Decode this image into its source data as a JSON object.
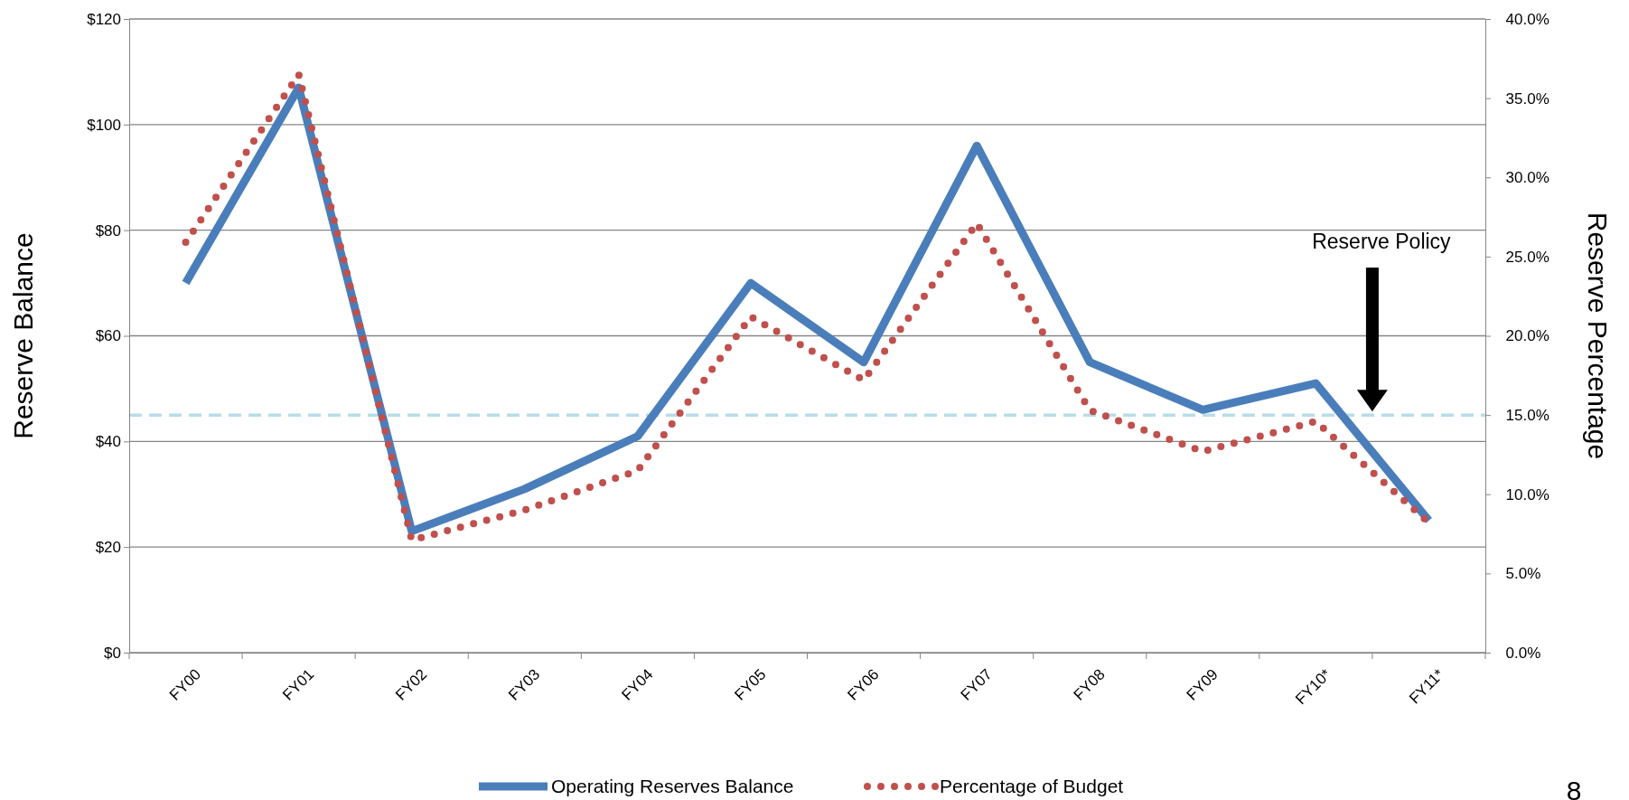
{
  "chart_data": {
    "type": "line",
    "ylabel": "Reserve Balance",
    "y2label": "Reserve Percentage",
    "categories": [
      "FY00",
      "FY01",
      "FY02",
      "FY03",
      "FY04",
      "FY05",
      "FY06",
      "FY07",
      "FY08",
      "FY09",
      "FY10*",
      "FY11*"
    ],
    "series": [
      {
        "name": "Operating Reserves Balance",
        "color": "#4a7ebb",
        "line_style": "solid",
        "values": [
          70,
          107,
          23,
          31,
          41,
          70,
          55,
          96,
          55,
          46,
          51,
          25
        ]
      },
      {
        "name": "Percentage of Budget",
        "color": "#c0504d",
        "line_style": "dotted",
        "axis": "y2",
        "values": [
          25.9,
          36.5,
          7.1,
          9.0,
          11.5,
          21.2,
          17.2,
          27.1,
          15.3,
          12.7,
          14.6,
          8.2
        ]
      }
    ],
    "ylim": [
      0,
      120
    ],
    "yticks": [
      {
        "value": 0,
        "label": "$0"
      },
      {
        "value": 20,
        "label": "$20"
      },
      {
        "value": 40,
        "label": "$40"
      },
      {
        "value": 60,
        "label": "$60"
      },
      {
        "value": 80,
        "label": "$80"
      },
      {
        "value": 100,
        "label": "$100"
      },
      {
        "value": 120,
        "label": "$120"
      }
    ],
    "y2lim": [
      0,
      40
    ],
    "y2ticks": [
      {
        "value": 0,
        "label": "0.0%"
      },
      {
        "value": 5,
        "label": "5.0%"
      },
      {
        "value": 10,
        "label": "10.0%"
      },
      {
        "value": 15,
        "label": "15.0%"
      },
      {
        "value": 20,
        "label": "20.0%"
      },
      {
        "value": 25,
        "label": "25.0%"
      },
      {
        "value": 30,
        "label": "30.0%"
      },
      {
        "value": 35,
        "label": "35.0%"
      },
      {
        "value": 40,
        "label": "40.0%"
      }
    ],
    "ref_lines": [
      {
        "axis": "y",
        "value": 45,
        "color": "#b7dde8",
        "line_style": "dashed"
      }
    ],
    "annotations": [
      "Reserve Policy",
      "8"
    ],
    "grid": "y",
    "legend": "bottom"
  }
}
